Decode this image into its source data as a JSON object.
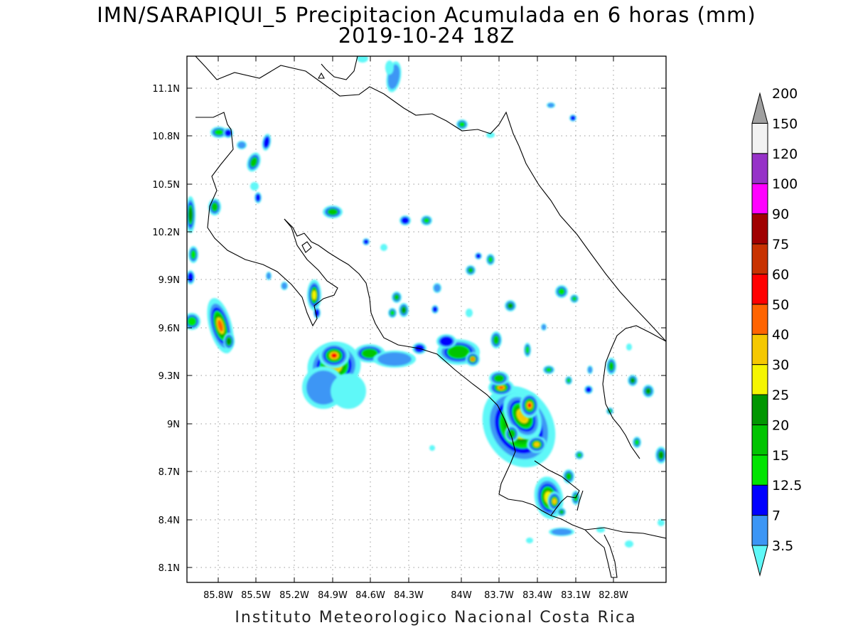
{
  "title": "IMN/SARAPIQUI_5 Precipitacion Acumulada en 6 horas (mm)",
  "subtitle": "2019-10-24 18Z",
  "footer": "Instituto Meteorologico Nacional Costa Rica",
  "map": {
    "lat_ticks": [
      "11.1N",
      "10.8N",
      "10.5N",
      "10.2N",
      "9.9N",
      "9.6N",
      "9.3N",
      "9N",
      "8.7N",
      "8.4N",
      "8.1N"
    ],
    "lon_ticks": [
      "85.8W",
      "85.5W",
      "85.2W",
      "84.9W",
      "84.6W",
      "84.3W",
      "84W",
      "83.7W",
      "83.4W",
      "83.1W",
      "82.8W"
    ],
    "grid": true
  },
  "colorbar": {
    "labels": [
      "3.5",
      "7",
      "12.5",
      "15",
      "20",
      "25",
      "30",
      "40",
      "50",
      "60",
      "75",
      "90",
      "100",
      "120",
      "150",
      "200"
    ],
    "colors": [
      "#5ff8f8",
      "#3c96f5",
      "#0000ff",
      "#00e400",
      "#00c400",
      "#009600",
      "#f5f500",
      "#f5c800",
      "#ff6400",
      "#ff0000",
      "#c83200",
      "#a00000",
      "#ff00ff",
      "#9632c8",
      "#f2f2f2",
      "#a0a0a0"
    ]
  }
}
